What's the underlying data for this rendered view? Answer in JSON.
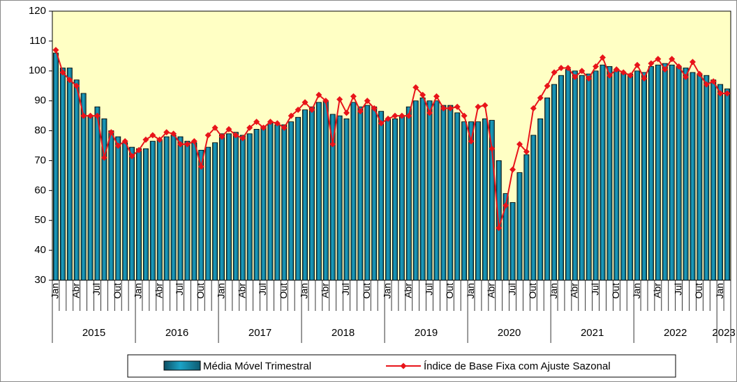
{
  "chart_data": {
    "type": "bar_line",
    "categories": [
      "Jan",
      null,
      null,
      "Abr",
      null,
      null,
      "Jul",
      null,
      null,
      "Out",
      null,
      null,
      "Jan",
      null,
      null,
      "Abr",
      null,
      null,
      "Jul",
      null,
      null,
      "Out",
      null,
      null,
      "Jan",
      null,
      null,
      "Abr",
      null,
      null,
      "Jul",
      null,
      null,
      "Out",
      null,
      null,
      "Jan",
      null,
      null,
      "Abr",
      null,
      null,
      "Jul",
      null,
      null,
      "Out",
      null,
      null,
      "Jan",
      null,
      null,
      "Abr",
      null,
      null,
      "Jul",
      null,
      null,
      "Out",
      null,
      null,
      "Jan",
      null,
      null,
      "Abr",
      null,
      null,
      "Jul",
      null,
      null,
      "Out",
      null,
      null,
      "Jan",
      null,
      null,
      "Abr",
      null,
      null,
      "Jul",
      null,
      null,
      "Out",
      null,
      null,
      "Jan",
      null,
      null,
      "Abr",
      null,
      null,
      "Jul",
      null,
      null,
      "Out",
      null,
      null,
      "Jan",
      null
    ],
    "years": [
      "2015",
      "2016",
      "2017",
      "2018",
      "2019",
      "2020",
      "2021",
      "2022",
      "2023"
    ],
    "series": [
      {
        "name": "Média Móvel Trimestral",
        "kind": "bar",
        "color": "#1ba3c6",
        "values": [
          106,
          101,
          101,
          97,
          92.5,
          85,
          88,
          84,
          80,
          78,
          76,
          74.5,
          74,
          74,
          76.5,
          77,
          78,
          78.5,
          78,
          76.5,
          76,
          73.5,
          74.5,
          76,
          79,
          79,
          79.5,
          78.5,
          79,
          80.5,
          81.5,
          82.5,
          82,
          82,
          83,
          84.5,
          87,
          88,
          89.5,
          90,
          85.5,
          85,
          84,
          89.5,
          88,
          88.5,
          88,
          86.5,
          84,
          84,
          85,
          88,
          90,
          91,
          90,
          90,
          88.5,
          88.5,
          86,
          83,
          83,
          83,
          84,
          83.5,
          70,
          59,
          56,
          66,
          72,
          78.5,
          84,
          91,
          95.5,
          98.5,
          100.5,
          100,
          98.5,
          99,
          100,
          102,
          101.5,
          100.5,
          99.5,
          99,
          100,
          99.5,
          101.5,
          102,
          102.5,
          102,
          101.5,
          101,
          99.5,
          99,
          98.5,
          97,
          95.5,
          94
        ]
      },
      {
        "name": "Índice de Base Fixa com Ajuste Sazonal",
        "kind": "line",
        "color": "#e8141a",
        "values": [
          107,
          99.5,
          97,
          95,
          85,
          85,
          85,
          71,
          79.5,
          75,
          76.5,
          71.5,
          73.5,
          77,
          78.5,
          77,
          79.5,
          79,
          75.5,
          75.5,
          76.5,
          68,
          78.5,
          81,
          78,
          80.5,
          78.5,
          77.5,
          81,
          83,
          81,
          83,
          82.5,
          81,
          85,
          87,
          89.5,
          87,
          92,
          90,
          75.5,
          90.5,
          86,
          91.5,
          86.5,
          90,
          87.5,
          82.5,
          84,
          85,
          85,
          85,
          94.5,
          92,
          86,
          91.5,
          87.5,
          87.5,
          88,
          85,
          76.5,
          88,
          88.5,
          74,
          47.5,
          55,
          67,
          75.5,
          73,
          87.5,
          91,
          95,
          99.5,
          101,
          101,
          98,
          100,
          97.5,
          101.5,
          104.5,
          98.5,
          100.5,
          99.5,
          98.5,
          102,
          97.5,
          102.5,
          104,
          100.5,
          104,
          101.5,
          98,
          103,
          99,
          95.5,
          96.5,
          92.5,
          92.5
        ]
      }
    ],
    "ylim": [
      30,
      120
    ],
    "yticks": [
      30,
      40,
      50,
      60,
      70,
      80,
      90,
      100,
      110,
      120
    ],
    "plot_background": "#ffffc4"
  }
}
